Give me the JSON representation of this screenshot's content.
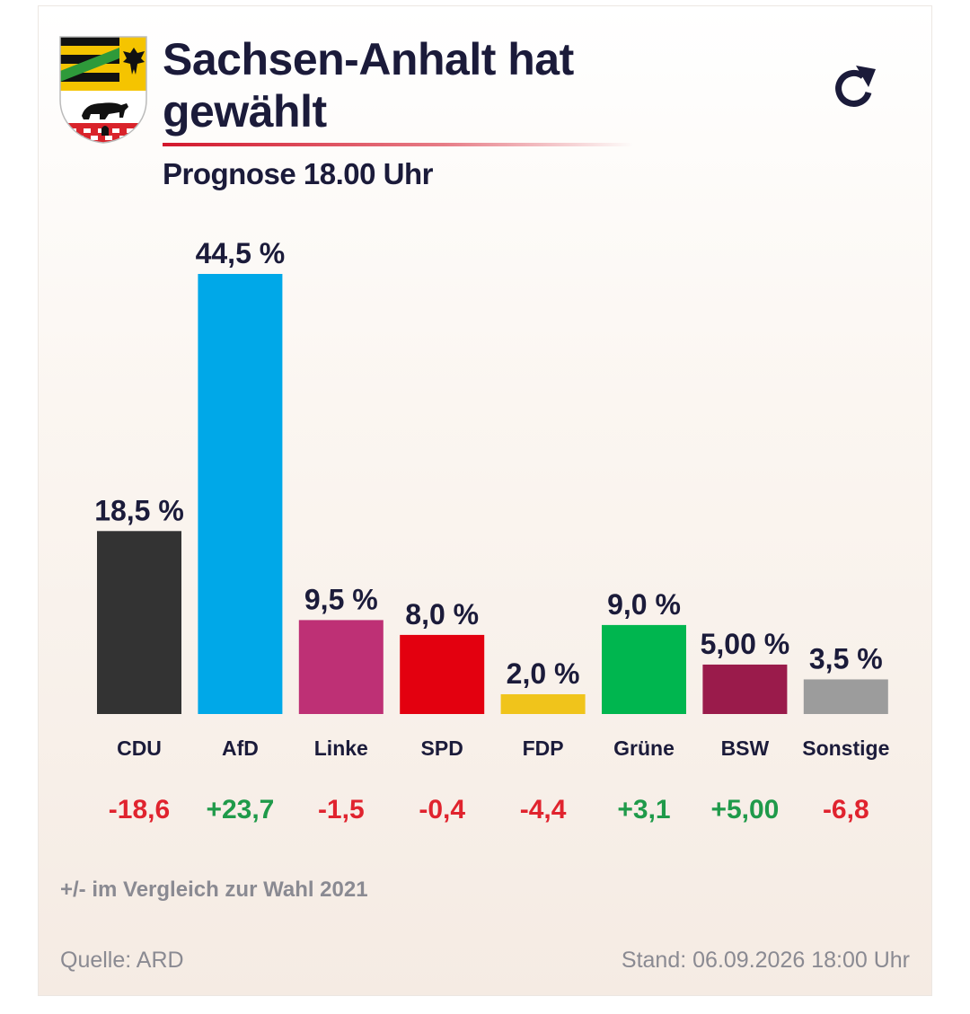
{
  "header": {
    "title": "Sachsen-Anhalt hat gewählt",
    "subtitle": "Prognose 18.00 Uhr",
    "crest_icon": "coat-of-arms-sachsen-anhalt",
    "refresh_icon": "refresh-icon"
  },
  "chart_data": {
    "type": "bar",
    "title": "Sachsen-Anhalt hat gewählt",
    "subtitle": "Prognose 18.00 Uhr",
    "categories": [
      "CDU",
      "AfD",
      "Linke",
      "SPD",
      "FDP",
      "Grüne",
      "BSW",
      "Sonstige"
    ],
    "values": [
      18.5,
      44.5,
      9.5,
      8.0,
      2.0,
      9.0,
      5.0,
      3.5
    ],
    "value_labels": [
      "18,5 %",
      "44,5 %",
      "9,5 %",
      "8,0 %",
      "2,0 %",
      "9,0 %",
      "5,00 %",
      "3,5 %"
    ],
    "change_labels": [
      "-18,6",
      "+23,7",
      "-1,5",
      "-0,4",
      "-4,4",
      "+3,1",
      "+5,00",
      "-6,8"
    ],
    "changes": [
      -18.6,
      23.7,
      -1.5,
      -0.4,
      -4.4,
      3.1,
      5.0,
      -6.8
    ],
    "colors": [
      "#333333",
      "#00a8e8",
      "#be3075",
      "#e3000f",
      "#f0c41b",
      "#00b64f",
      "#9a1b4b",
      "#9c9c9c"
    ],
    "change_colors": {
      "positive": "#1f9a4a",
      "negative": "#e0232e"
    },
    "xlabel": "",
    "ylabel": "",
    "ylim": [
      0,
      44.5
    ],
    "grid": false,
    "legend": "none"
  },
  "footer": {
    "comparison_note": "+/- im Vergleich zur Wahl 2021",
    "source": "Quelle: ARD",
    "stand": "Stand: 06.09.2026 18:00 Uhr"
  }
}
